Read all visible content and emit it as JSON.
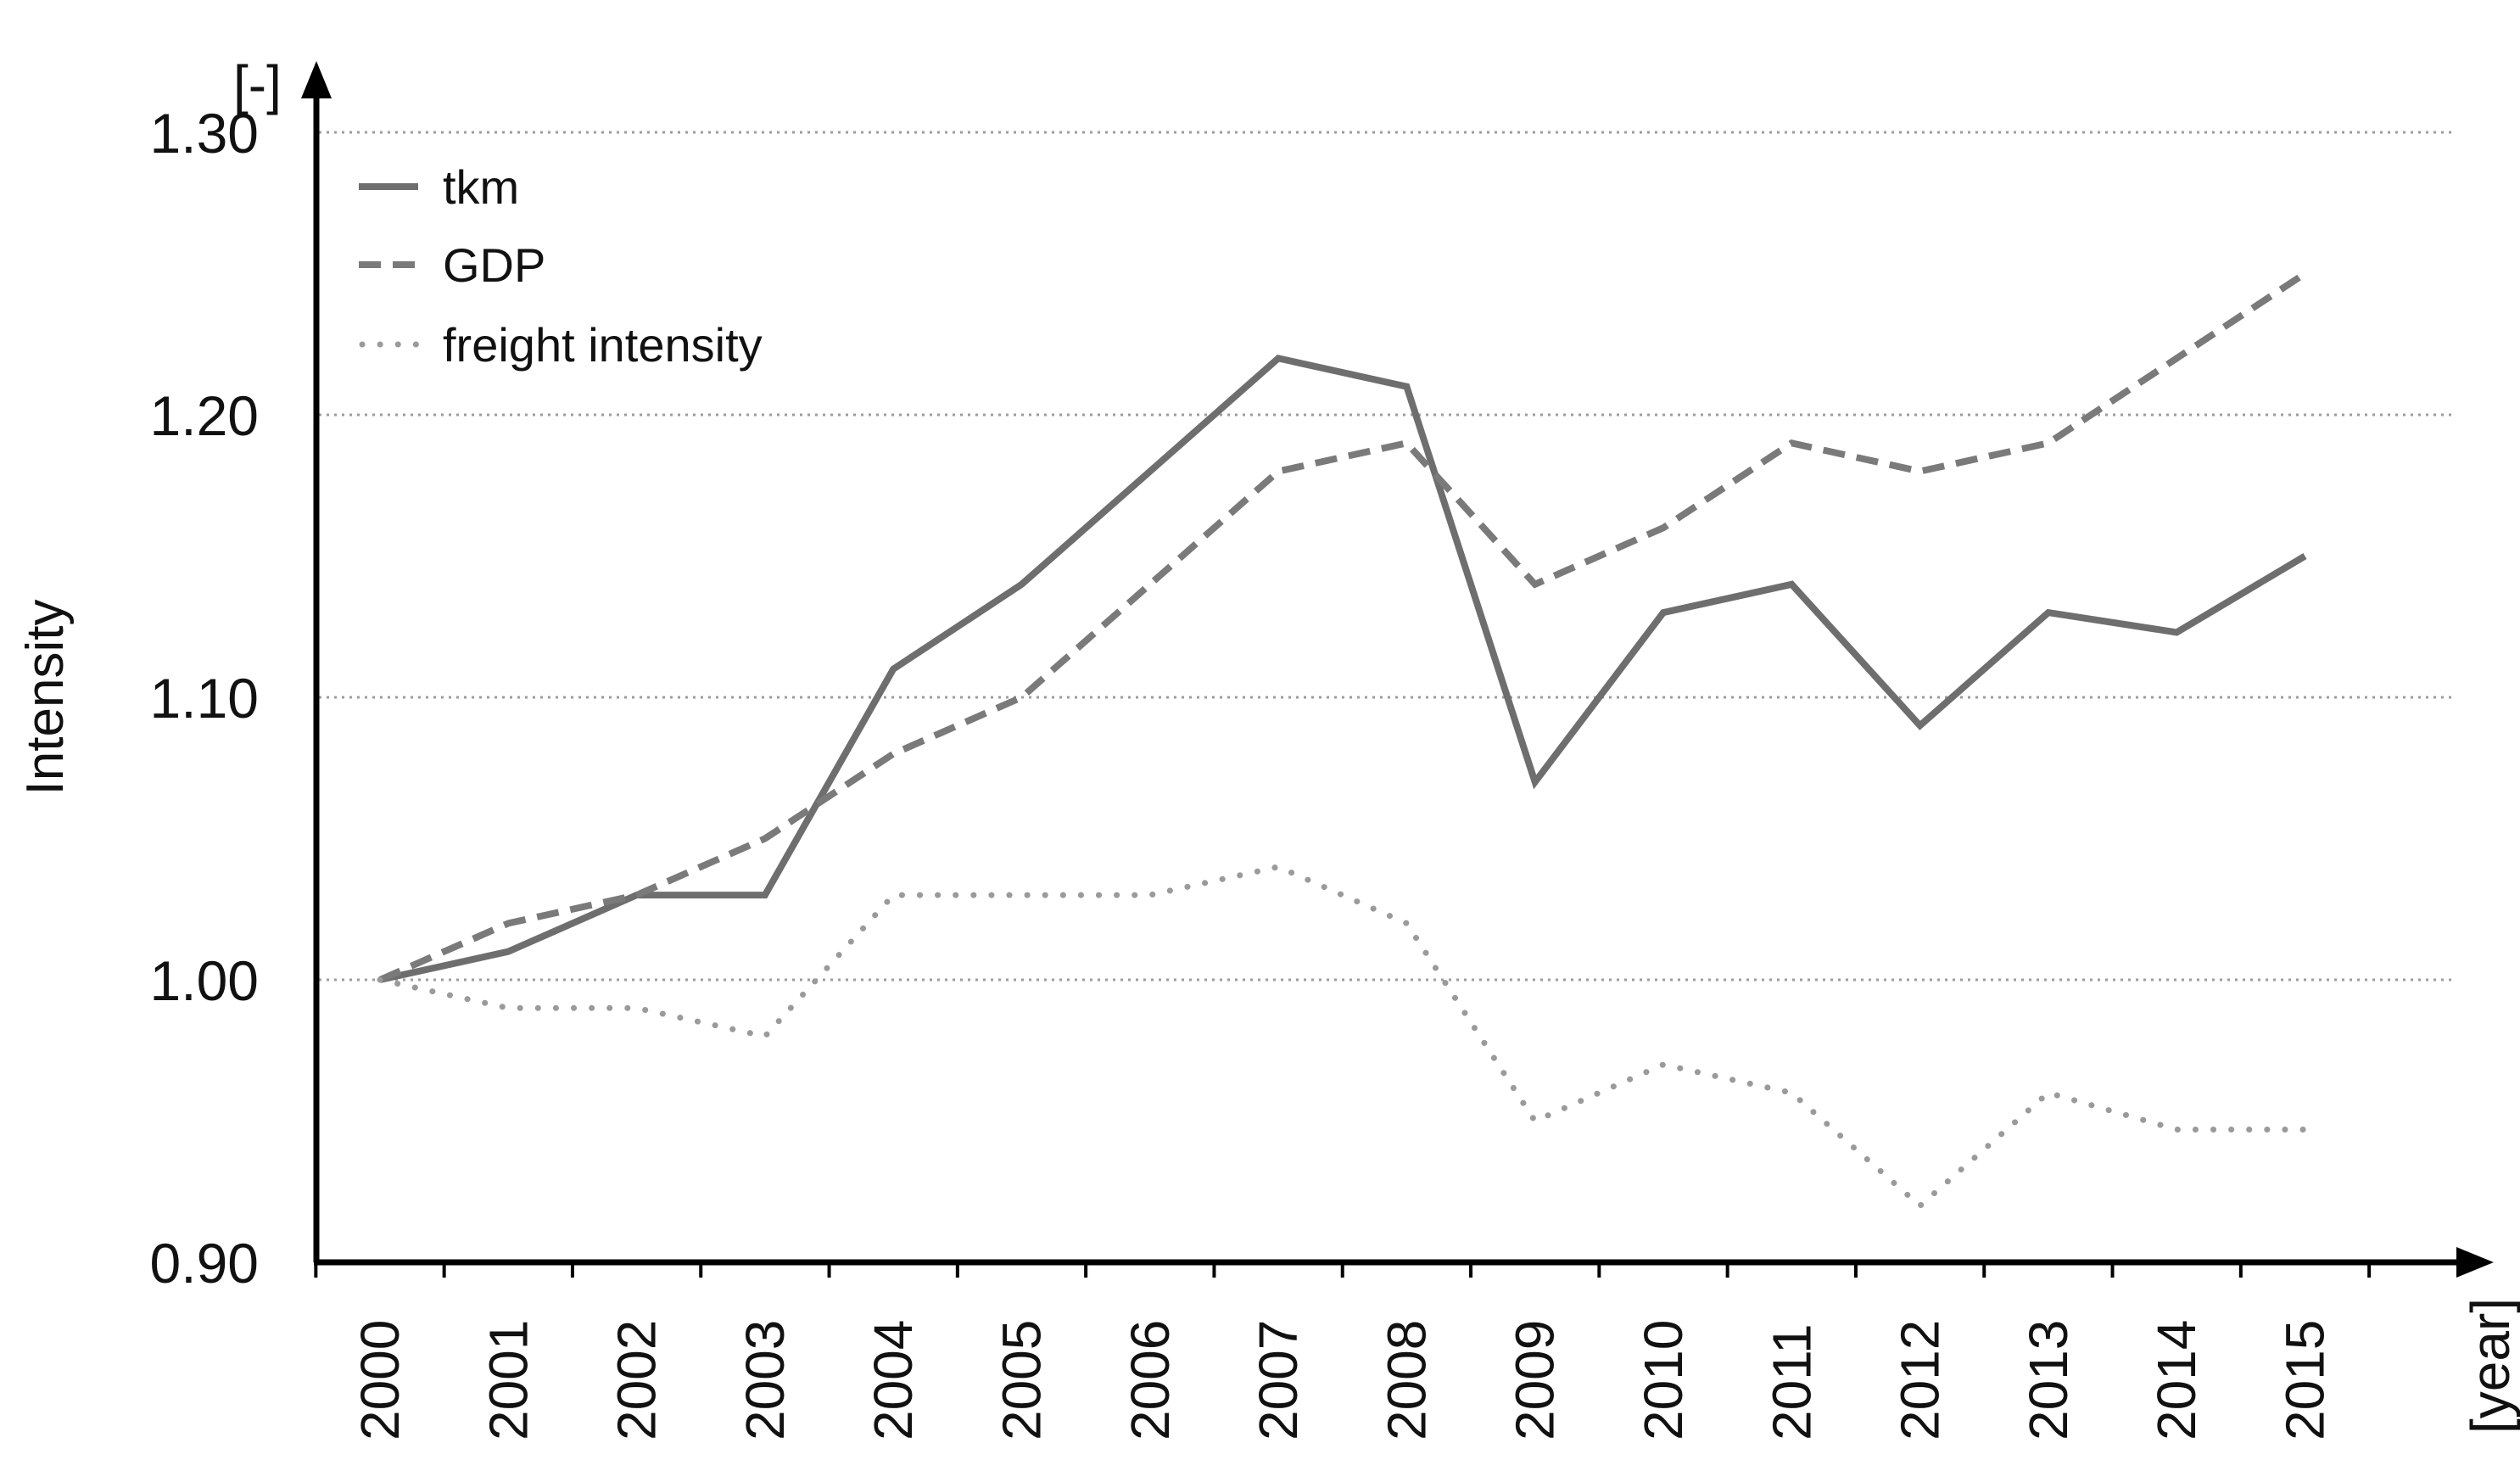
{
  "chart_data": {
    "type": "line",
    "title": "",
    "xlabel": "[year]",
    "ylabel": "Intensity",
    "yunit": "[-]",
    "ylim": [
      0.9,
      1.3
    ],
    "yticks": [
      "0.90",
      "1.00",
      "1.10",
      "1.20",
      "1.30"
    ],
    "categories": [
      "2000",
      "2001",
      "2002",
      "2003",
      "2004",
      "2005",
      "2006",
      "2007",
      "2008",
      "2009",
      "2010",
      "2011",
      "2012",
      "2013",
      "2014",
      "2015"
    ],
    "grid": true,
    "legend_position": "top-left",
    "series": [
      {
        "name": "tkm",
        "style": "solid",
        "color": "#6e6e6e",
        "values": [
          1.0,
          1.01,
          1.03,
          1.03,
          1.11,
          1.14,
          1.18,
          1.22,
          1.21,
          1.07,
          1.13,
          1.14,
          1.09,
          1.13,
          1.123,
          1.15
        ]
      },
      {
        "name": "GDP",
        "style": "dashed",
        "color": "#7a7a7a",
        "values": [
          1.0,
          1.02,
          1.03,
          1.05,
          1.08,
          1.1,
          1.14,
          1.18,
          1.19,
          1.14,
          1.16,
          1.19,
          1.18,
          1.19,
          1.22,
          1.25
        ]
      },
      {
        "name": "freight intensity",
        "style": "dotted",
        "color": "#9a9a9a",
        "values": [
          1.0,
          0.99,
          0.99,
          0.98,
          1.03,
          1.03,
          1.03,
          1.04,
          1.02,
          0.95,
          0.97,
          0.96,
          0.92,
          0.96,
          0.947,
          0.947
        ]
      }
    ]
  }
}
